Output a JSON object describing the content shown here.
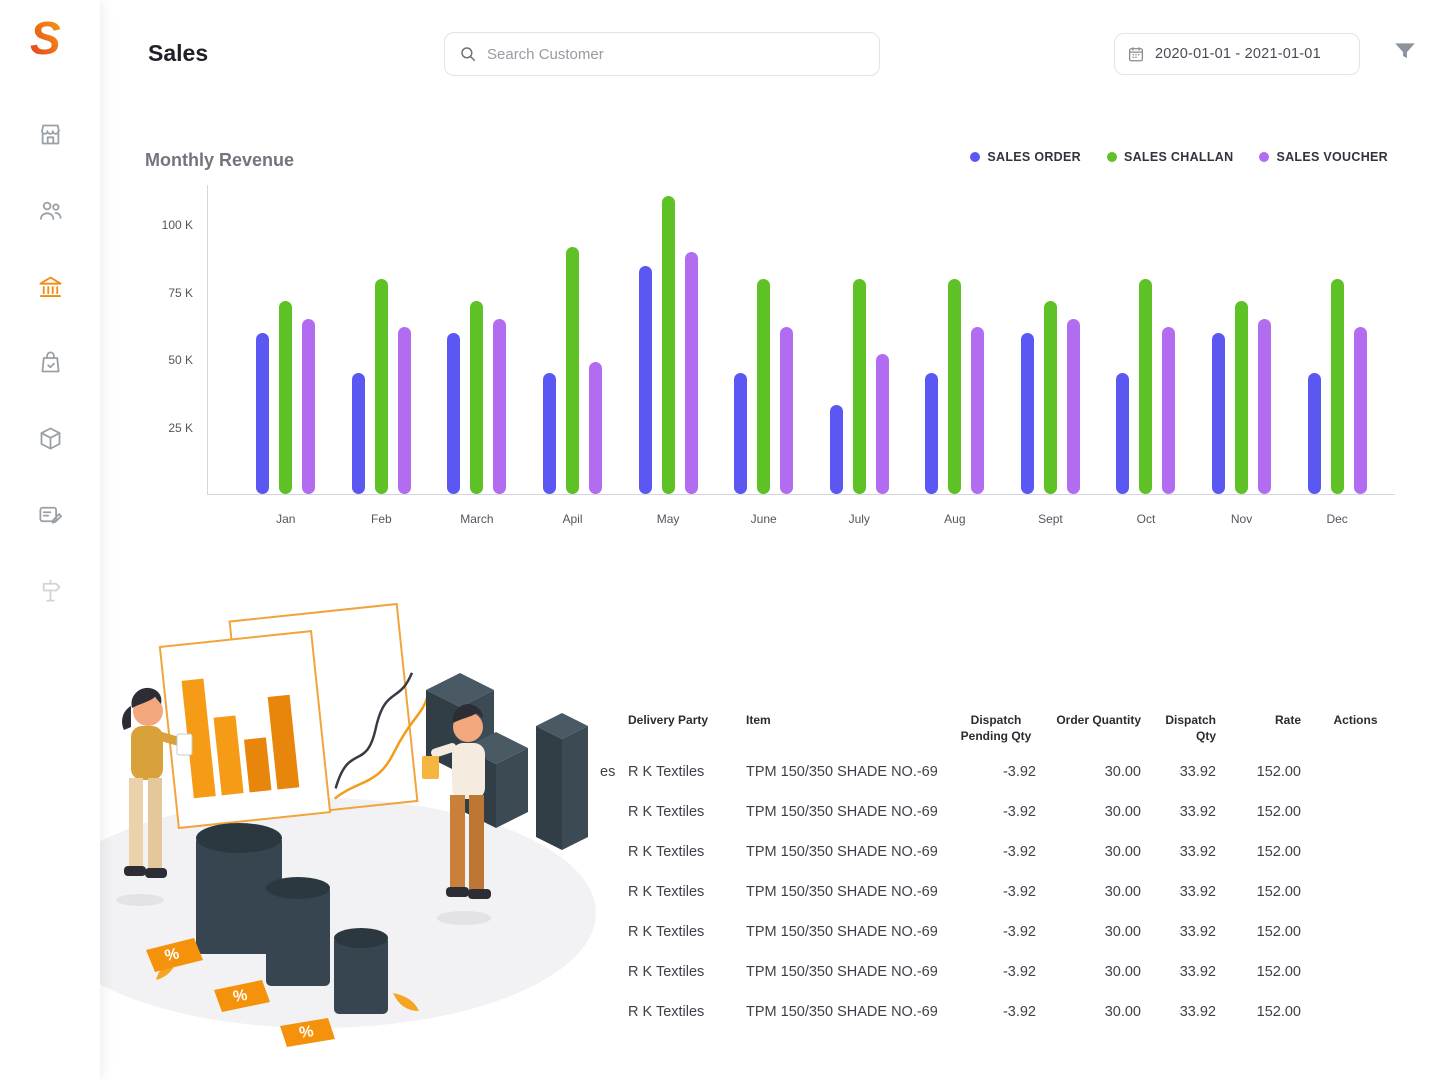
{
  "sidebar": {
    "logo_letter": "S",
    "items": [
      {
        "label": "store",
        "icon": "store-icon",
        "active": false
      },
      {
        "label": "customers",
        "icon": "customers-icon",
        "active": false
      },
      {
        "label": "sales",
        "icon": "bank-icon",
        "active": true
      },
      {
        "label": "purchases",
        "icon": "bag-check-icon",
        "active": false
      },
      {
        "label": "inventory",
        "icon": "package-icon",
        "active": false
      },
      {
        "label": "documents",
        "icon": "card-edit-icon",
        "active": false
      },
      {
        "label": "milestones",
        "icon": "milestone-icon",
        "active": false
      }
    ]
  },
  "header": {
    "title": "Sales",
    "search_placeholder": "Search Customer",
    "date_range": "2020-01-01 -  2021-01-01"
  },
  "chart_data": {
    "type": "bar",
    "title": "Monthly Revenue",
    "categories": [
      "Jan",
      "Feb",
      "March",
      "Apil",
      "May",
      "June",
      "July",
      "Aug",
      "Sept",
      "Oct",
      "Nov",
      "Dec"
    ],
    "series": [
      {
        "name": "SALES ORDER",
        "color": "#5b57f2",
        "values": [
          60,
          45,
          60,
          45,
          85,
          45,
          33,
          45,
          60,
          45,
          60,
          45
        ]
      },
      {
        "name": "SALES CHALLAN",
        "color": "#5ec125",
        "values": [
          72,
          80,
          72,
          92,
          111,
          80,
          80,
          80,
          72,
          80,
          72,
          80
        ]
      },
      {
        "name": "SALES VOUCHER",
        "color": "#b26cf0",
        "values": [
          65,
          62,
          65,
          49,
          90,
          62,
          52,
          62,
          65,
          62,
          65,
          62
        ]
      }
    ],
    "yticks": [
      {
        "label": "100 K",
        "value": 100
      },
      {
        "label": "75 K",
        "value": 75
      },
      {
        "label": "50 K",
        "value": 50
      },
      {
        "label": "25 K",
        "value": 25
      }
    ],
    "ylim": [
      0,
      115
    ],
    "unit": "K",
    "grid": false,
    "legend_position": "top-right"
  },
  "table": {
    "headers": [
      {
        "key": "fragment",
        "label": "",
        "align": "left"
      },
      {
        "key": "delivery_party",
        "label": "Delivery Party",
        "align": "left"
      },
      {
        "key": "item",
        "label": "Item",
        "align": "left"
      },
      {
        "key": "dispatch_pending_qty",
        "label": "Dispatch Pending Qty",
        "align": "right",
        "header_align": "center"
      },
      {
        "key": "order_quantity",
        "label": "Order Quantity",
        "align": "right"
      },
      {
        "key": "dispatch_qty",
        "label": "Dispatch Qty",
        "align": "right"
      },
      {
        "key": "rate",
        "label": "Rate",
        "align": "right"
      },
      {
        "key": "actions",
        "label": "Actions",
        "align": "center"
      }
    ],
    "rows": [
      {
        "fragment": "es",
        "delivery_party": "R K Textiles",
        "item": "TPM 150/350 SHADE NO.-69",
        "dispatch_pending_qty": "-3.92",
        "order_quantity": "30.00",
        "dispatch_qty": "33.92",
        "rate": "152.00",
        "actions": ""
      },
      {
        "fragment": "",
        "delivery_party": "R K Textiles",
        "item": "TPM 150/350 SHADE NO.-69",
        "dispatch_pending_qty": "-3.92",
        "order_quantity": "30.00",
        "dispatch_qty": "33.92",
        "rate": "152.00",
        "actions": ""
      },
      {
        "fragment": "",
        "delivery_party": "R K Textiles",
        "item": "TPM 150/350 SHADE NO.-69",
        "dispatch_pending_qty": "-3.92",
        "order_quantity": "30.00",
        "dispatch_qty": "33.92",
        "rate": "152.00",
        "actions": ""
      },
      {
        "fragment": "",
        "delivery_party": "R K Textiles",
        "item": "TPM 150/350 SHADE NO.-69",
        "dispatch_pending_qty": "-3.92",
        "order_quantity": "30.00",
        "dispatch_qty": "33.92",
        "rate": "152.00",
        "actions": ""
      },
      {
        "fragment": "",
        "delivery_party": "R K Textiles",
        "item": "TPM 150/350 SHADE NO.-69",
        "dispatch_pending_qty": "-3.92",
        "order_quantity": "30.00",
        "dispatch_qty": "33.92",
        "rate": "152.00",
        "actions": ""
      },
      {
        "fragment": "",
        "delivery_party": "R K Textiles",
        "item": "TPM 150/350 SHADE NO.-69",
        "dispatch_pending_qty": "-3.92",
        "order_quantity": "30.00",
        "dispatch_qty": "33.92",
        "rate": "152.00",
        "actions": ""
      },
      {
        "fragment": "",
        "delivery_party": "R K Textiles",
        "item": "TPM 150/350 SHADE NO.-69",
        "dispatch_pending_qty": "-3.92",
        "order_quantity": "30.00",
        "dispatch_qty": "33.92",
        "rate": "152.00",
        "actions": ""
      }
    ]
  },
  "illustration": {
    "tag_symbol": "%"
  }
}
